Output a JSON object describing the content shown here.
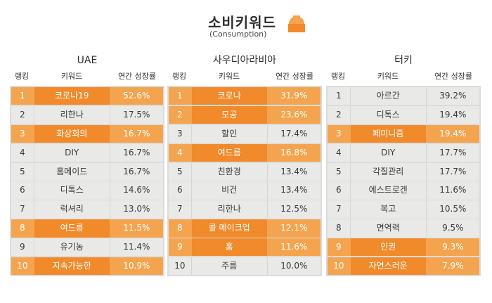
{
  "header": {
    "title": "소비키워드",
    "subtitle": "(Consumption)",
    "icon": "bowl-icon"
  },
  "colors": {
    "highlight": "#f4a44e",
    "highlight_dark": "#f08a2a",
    "row_bg": "#e9e9e7"
  },
  "panels": [
    {
      "country": "UAE",
      "col_rank": "랭킹",
      "col_keyword": "키워드",
      "col_rate": "연간 성장률",
      "rows": [
        {
          "rank": "1",
          "keyword": "코로나19",
          "rate": "52.6%",
          "highlight": true
        },
        {
          "rank": "2",
          "keyword": "리한나",
          "rate": "17.5%",
          "highlight": false
        },
        {
          "rank": "3",
          "keyword": "화상회의",
          "rate": "16.7%",
          "highlight": true
        },
        {
          "rank": "4",
          "keyword": "DIY",
          "rate": "16.7%",
          "highlight": false
        },
        {
          "rank": "5",
          "keyword": "홈메이드",
          "rate": "16.7%",
          "highlight": false
        },
        {
          "rank": "6",
          "keyword": "디톡스",
          "rate": "14.6%",
          "highlight": false
        },
        {
          "rank": "7",
          "keyword": "럭셔리",
          "rate": "13.0%",
          "highlight": false
        },
        {
          "rank": "8",
          "keyword": "여드름",
          "rate": "11.5%",
          "highlight": true
        },
        {
          "rank": "9",
          "keyword": "유기농",
          "rate": "11.4%",
          "highlight": false
        },
        {
          "rank": "10",
          "keyword": "지속가능한",
          "rate": "10.9%",
          "highlight": true
        }
      ]
    },
    {
      "country": "사우디아라비아",
      "col_rank": "랭킹",
      "col_keyword": "키워드",
      "col_rate": "연간 성장률",
      "rows": [
        {
          "rank": "1",
          "keyword": "코로나",
          "rate": "31.9%",
          "highlight": true
        },
        {
          "rank": "2",
          "keyword": "모공",
          "rate": "23.6%",
          "highlight": true
        },
        {
          "rank": "3",
          "keyword": "할인",
          "rate": "17.4%",
          "highlight": false
        },
        {
          "rank": "4",
          "keyword": "여드름",
          "rate": "16.8%",
          "highlight": true
        },
        {
          "rank": "5",
          "keyword": "친환경",
          "rate": "13.4%",
          "highlight": false
        },
        {
          "rank": "6",
          "keyword": "비건",
          "rate": "13.4%",
          "highlight": false
        },
        {
          "rank": "7",
          "keyword": "리한나",
          "rate": "12.5%",
          "highlight": false
        },
        {
          "rank": "8",
          "keyword": "콜 메이크업",
          "rate": "12.1%",
          "highlight": true
        },
        {
          "rank": "9",
          "keyword": "홈",
          "rate": "11.6%",
          "highlight": true
        },
        {
          "rank": "10",
          "keyword": "주름",
          "rate": "10.0%",
          "highlight": false
        }
      ]
    },
    {
      "country": "터키",
      "col_rank": "랭킹",
      "col_keyword": "키워드",
      "col_rate": "연간 성장률",
      "rows": [
        {
          "rank": "1",
          "keyword": "아르간",
          "rate": "39.2%",
          "highlight": false
        },
        {
          "rank": "2",
          "keyword": "디톡스",
          "rate": "19.4%",
          "highlight": false
        },
        {
          "rank": "3",
          "keyword": "페미니즘",
          "rate": "19.4%",
          "highlight": true
        },
        {
          "rank": "4",
          "keyword": "DIY",
          "rate": "17.7%",
          "highlight": false
        },
        {
          "rank": "5",
          "keyword": "각질관리",
          "rate": "17.7%",
          "highlight": false
        },
        {
          "rank": "6",
          "keyword": "에스트로겐",
          "rate": "11.6%",
          "highlight": false
        },
        {
          "rank": "7",
          "keyword": "복고",
          "rate": "10.5%",
          "highlight": false
        },
        {
          "rank": "8",
          "keyword": "면역력",
          "rate": "9.5%",
          "highlight": false
        },
        {
          "rank": "9",
          "keyword": "인권",
          "rate": "9.3%",
          "highlight": true
        },
        {
          "rank": "10",
          "keyword": "자연스러운",
          "rate": "7.9%",
          "highlight": true
        }
      ]
    }
  ]
}
